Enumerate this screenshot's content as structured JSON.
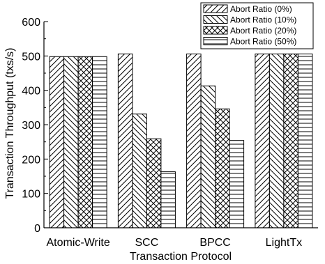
{
  "chart_data": {
    "type": "bar",
    "title": "",
    "xlabel": "Transaction Protocol",
    "ylabel": "Transaction Throughput (txs/s)",
    "categories": [
      "Atomic-Write",
      "SCC",
      "BPCC",
      "LightTx"
    ],
    "ylim": [
      0,
      600
    ],
    "yticks": [
      0,
      100,
      200,
      300,
      400,
      500,
      600
    ],
    "grid": false,
    "legend_position": "top-right",
    "series": [
      {
        "name": "Abort Ratio (0%)",
        "pattern": "forward-diagonal",
        "values": [
          498,
          506,
          506,
          506
        ]
      },
      {
        "name": "Abort Ratio (10%)",
        "pattern": "backward-diagonal",
        "values": [
          498,
          331,
          413,
          506
        ]
      },
      {
        "name": "Abort Ratio (20%)",
        "pattern": "crosshatch",
        "values": [
          498,
          259,
          346,
          506
        ]
      },
      {
        "name": "Abort Ratio (50%)",
        "pattern": "horizontal",
        "values": [
          498,
          163,
          254,
          506
        ]
      }
    ]
  }
}
